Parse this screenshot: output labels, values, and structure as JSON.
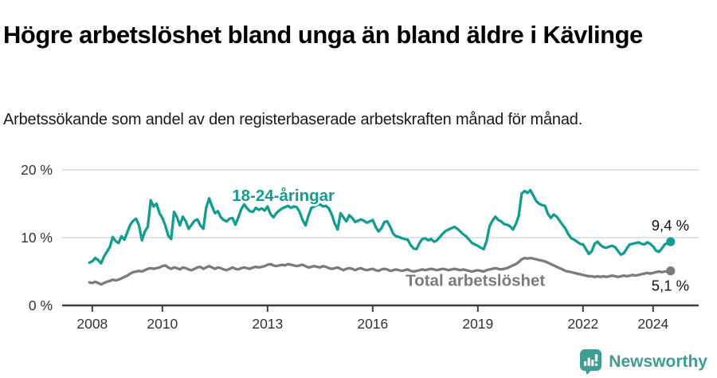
{
  "header": {
    "title": "Högre arbetslöshet bland unga än bland äldre i Kävlinge",
    "subtitle": "Arbetssökande som andel av den registerbaserade arbetskraften månad för månad."
  },
  "footer": {
    "brand": "Newsworthy",
    "brand_color": "#3F9D92",
    "logo_icon": "bar-chart-speech-bubble-icon"
  },
  "chart_data": {
    "type": "line",
    "title": "Högre arbetslöshet bland unga än bland äldre i Kävlinge",
    "xlabel": "",
    "ylabel": "",
    "xlim": [
      2007.14,
      2025.3
    ],
    "ylim": [
      0,
      20
    ],
    "grid": "horizontal-only",
    "legend_position": "inline-labels",
    "x_start": 2007.9167,
    "x_step_years": 0.08333,
    "x_ticks": [
      {
        "v": 2008,
        "label": "2008"
      },
      {
        "v": 2010,
        "label": "2010"
      },
      {
        "v": 2013,
        "label": "2013"
      },
      {
        "v": 2016,
        "label": "2016"
      },
      {
        "v": 2019,
        "label": "2019"
      },
      {
        "v": 2022,
        "label": "2022"
      },
      {
        "v": 2024,
        "label": "2024"
      }
    ],
    "y_ticks": [
      {
        "v": 0,
        "label": "0 %"
      },
      {
        "v": 10,
        "label": "10 %"
      },
      {
        "v": 20,
        "label": "20 %"
      }
    ],
    "series": [
      {
        "name": "18-24-åringar",
        "color": "#119D8F",
        "end_label": "9,4 %",
        "end_label_offset": [
          -24,
          -14
        ],
        "values": [
          6.3,
          6.5,
          7.0,
          6.7,
          6.2,
          7.2,
          7.9,
          8.6,
          10.1,
          9.5,
          9.2,
          10.2,
          9.7,
          10.8,
          11.9,
          12.5,
          12.8,
          11.8,
          9.6,
          10.9,
          11.6,
          15.5,
          14.6,
          15.0,
          13.6,
          12.9,
          11.8,
          10.3,
          9.8,
          13.8,
          13.0,
          11.8,
          13.1,
          12.4,
          11.3,
          11.9,
          12.5,
          12.7,
          11.8,
          11.3,
          14.4,
          15.8,
          14.6,
          13.6,
          13.9,
          13.0,
          12.6,
          12.4,
          12.8,
          12.9,
          11.9,
          13.0,
          14.2,
          14.9,
          14.3,
          13.9,
          13.8,
          14.4,
          14.1,
          14.3,
          14.0,
          14.6,
          13.5,
          13.0,
          13.6,
          14.0,
          14.3,
          14.5,
          14.7,
          14.4,
          14.6,
          14.5,
          13.8,
          12.6,
          11.8,
          13.2,
          14.4,
          14.6,
          14.8,
          14.9,
          14.6,
          14.7,
          14.3,
          13.4,
          12.1,
          11.2,
          13.6,
          13.0,
          12.4,
          13.3,
          12.9,
          12.3,
          12.5,
          12.7,
          12.5,
          12.2,
          12.4,
          12.6,
          11.6,
          10.9,
          11.4,
          12.3,
          12.4,
          11.6,
          10.6,
          10.2,
          10.1,
          9.9,
          9.8,
          9.7,
          8.9,
          8.4,
          8.3,
          9.2,
          9.8,
          9.9,
          9.6,
          9.8,
          9.4,
          9.6,
          10.1,
          10.6,
          11.0,
          11.2,
          11.4,
          11.6,
          11.3,
          10.9,
          10.5,
          10.2,
          9.7,
          9.2,
          9.0,
          8.8,
          8.5,
          8.3,
          9.5,
          11.7,
          12.5,
          13.1,
          12.6,
          12.4,
          12.0,
          11.9,
          11.7,
          11.2,
          12.0,
          13.2,
          16.5,
          16.9,
          16.6,
          17.0,
          16.2,
          15.4,
          15.0,
          14.8,
          14.7,
          13.5,
          12.9,
          13.4,
          13.1,
          12.5,
          11.9,
          11.3,
          10.5,
          9.9,
          9.7,
          9.4,
          9.1,
          9.0,
          8.3,
          7.6,
          8.0,
          9.1,
          9.4,
          8.9,
          8.6,
          8.5,
          8.7,
          8.8,
          8.6,
          8.0,
          7.5,
          7.7,
          8.4,
          9.0,
          9.1,
          9.2,
          9.3,
          9.1,
          9.0,
          9.3,
          9.1,
          8.7,
          8.1,
          7.9,
          8.4,
          9.0,
          9.2,
          9.4
        ]
      },
      {
        "name": "Total arbetslöshet",
        "color": "#7B7B7B",
        "end_label": "5,1 %",
        "end_label_offset": [
          -24,
          25
        ],
        "values": [
          3.4,
          3.3,
          3.5,
          3.3,
          3.1,
          3.3,
          3.5,
          3.6,
          3.8,
          3.7,
          3.8,
          4.0,
          4.2,
          4.4,
          4.7,
          4.9,
          5.0,
          5.1,
          5.0,
          5.2,
          5.4,
          5.5,
          5.4,
          5.5,
          5.6,
          5.8,
          5.9,
          5.6,
          5.4,
          5.6,
          5.5,
          5.3,
          5.6,
          5.5,
          5.3,
          5.2,
          5.4,
          5.6,
          5.7,
          5.4,
          5.6,
          5.8,
          5.6,
          5.4,
          5.6,
          5.5,
          5.3,
          5.2,
          5.4,
          5.6,
          5.4,
          5.3,
          5.5,
          5.6,
          5.5,
          5.4,
          5.6,
          5.7,
          5.6,
          5.7,
          5.8,
          6.0,
          6.1,
          5.9,
          5.8,
          5.9,
          6.0,
          5.9,
          6.1,
          6.0,
          5.9,
          5.8,
          5.9,
          6.0,
          5.8,
          5.6,
          5.7,
          5.8,
          5.7,
          5.6,
          5.8,
          5.7,
          5.5,
          5.4,
          5.5,
          5.6,
          5.4,
          5.2,
          5.4,
          5.5,
          5.4,
          5.2,
          5.4,
          5.5,
          5.3,
          5.2,
          5.3,
          5.4,
          5.2,
          5.1,
          5.3,
          5.4,
          5.3,
          5.1,
          5.2,
          5.3,
          5.2,
          5.1,
          5.2,
          5.3,
          5.1,
          5.0,
          5.1,
          5.2,
          5.3,
          5.2,
          5.3,
          5.4,
          5.3,
          5.2,
          5.3,
          5.4,
          5.3,
          5.2,
          5.3,
          5.4,
          5.3,
          5.2,
          5.3,
          5.2,
          5.1,
          5.0,
          5.1,
          5.2,
          5.1,
          5.0,
          5.2,
          5.3,
          5.4,
          5.5,
          5.4,
          5.3,
          5.4,
          5.5,
          5.7,
          5.9,
          6.1,
          6.4,
          6.8,
          7.0,
          6.9,
          7.0,
          6.9,
          6.8,
          6.7,
          6.6,
          6.5,
          6.3,
          6.1,
          5.9,
          5.7,
          5.5,
          5.3,
          5.1,
          5.0,
          4.9,
          4.8,
          4.7,
          4.6,
          4.5,
          4.4,
          4.3,
          4.3,
          4.2,
          4.3,
          4.2,
          4.3,
          4.2,
          4.3,
          4.4,
          4.3,
          4.2,
          4.3,
          4.4,
          4.3,
          4.4,
          4.5,
          4.4,
          4.5,
          4.6,
          4.7,
          4.8,
          4.7,
          4.8,
          4.9,
          5.0,
          4.9,
          5.0,
          5.0,
          5.1
        ]
      }
    ],
    "annotations": [
      {
        "text": "18-24-åringar",
        "x": 2013.45,
        "y": 15.4,
        "color": "#119D8F"
      },
      {
        "text": "Total arbetslöshet",
        "x": 2018.93,
        "y": 2.9,
        "color": "#7B7B7B"
      }
    ],
    "colors": {
      "gridline": "#D8D8D8",
      "axis": "#3D3D3D",
      "tick_label": "#333333",
      "end_label": "#111111"
    }
  }
}
